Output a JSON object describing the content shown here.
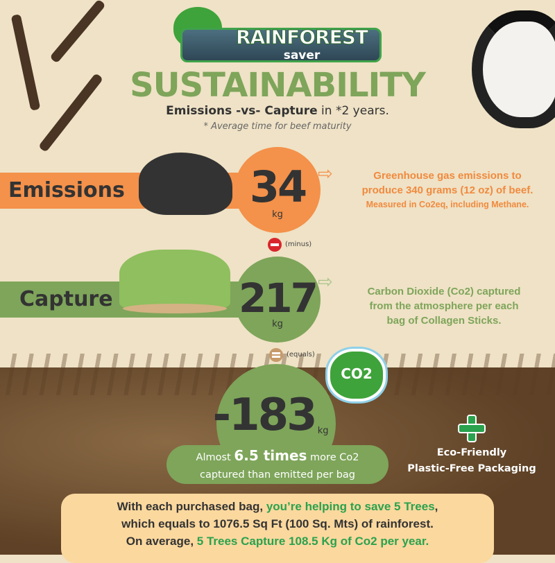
{
  "logo": {
    "title": "RAINFOREST",
    "subtitle": "saver"
  },
  "header": {
    "title": "SUSTAINABILITY",
    "subtitle_bold": "Emissions -vs- Capture",
    "subtitle_rest": " in *2 years.",
    "note": "* Average time for beef maturity"
  },
  "emissions": {
    "label": "Emissions",
    "value": "34",
    "unit": "kg",
    "desc_line1": "Greenhouse gas emissions to",
    "desc_line2": "produce 340 grams (12 oz) of beef.",
    "desc_line3": "Measured in Co2eq, including Methane.",
    "color": "#f4914a"
  },
  "minus": {
    "label": "(minus)"
  },
  "capture": {
    "label": "Capture",
    "value": "217",
    "unit": "kg",
    "desc_line1": "Carbon Dioxide (Co2) captured",
    "desc_line2": "from the atmosphere per each",
    "desc_line3": "bag of Collagen Sticks.",
    "color": "#7ea55a"
  },
  "equals": {
    "label": "(equals)"
  },
  "result": {
    "value": "-183",
    "unit": "kg",
    "badge": "CO2",
    "text_pre": "Almost ",
    "text_bold": "6.5 times",
    "text_post": " more Co2",
    "text_line2": "captured than emitted per bag"
  },
  "eco": {
    "line1": "Eco-Friendly",
    "line2": "Plastic-Free Packaging"
  },
  "bottom": {
    "l1a": "With each purchased bag, ",
    "l1b": "you’re helping to save 5 Trees",
    "l1c": ",",
    "l2": "which equals to 1076.5 Sq Ft (100 Sq. Mts) of rainforest.",
    "l3a": "On average, ",
    "l3b": "5 Trees Capture 108.5 Kg of Co2 per year."
  }
}
